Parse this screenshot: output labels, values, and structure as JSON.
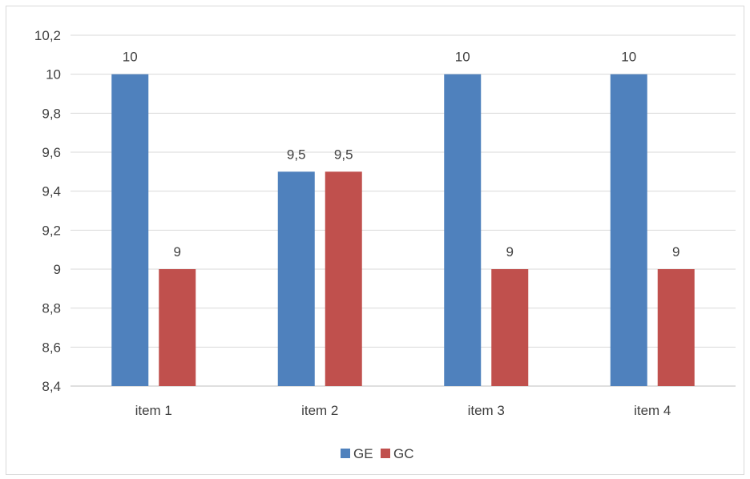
{
  "chart_data": {
    "type": "bar",
    "categories": [
      "item 1",
      "item 2",
      "item 3",
      "item 4"
    ],
    "series": [
      {
        "name": "GE",
        "color": "#4f81bd",
        "values": [
          10,
          9.5,
          10,
          10
        ],
        "labels": [
          "10",
          "9,5",
          "10",
          "10"
        ]
      },
      {
        "name": "GC",
        "color": "#c0504d",
        "values": [
          9,
          9.5,
          9,
          9
        ],
        "labels": [
          "9",
          "9,5",
          "9",
          "9"
        ]
      }
    ],
    "ylim": [
      8.4,
      10.2
    ],
    "yticks": [
      8.4,
      8.6,
      8.8,
      9,
      9.2,
      9.4,
      9.6,
      9.8,
      10,
      10.2
    ],
    "ytick_labels": [
      "8,4",
      "8,6",
      "8,8",
      "9",
      "9,2",
      "9,4",
      "9,6",
      "9,8",
      "10",
      "10,2"
    ],
    "grid": true,
    "legend": "bottom",
    "title": "",
    "xlabel": "",
    "ylabel": ""
  }
}
